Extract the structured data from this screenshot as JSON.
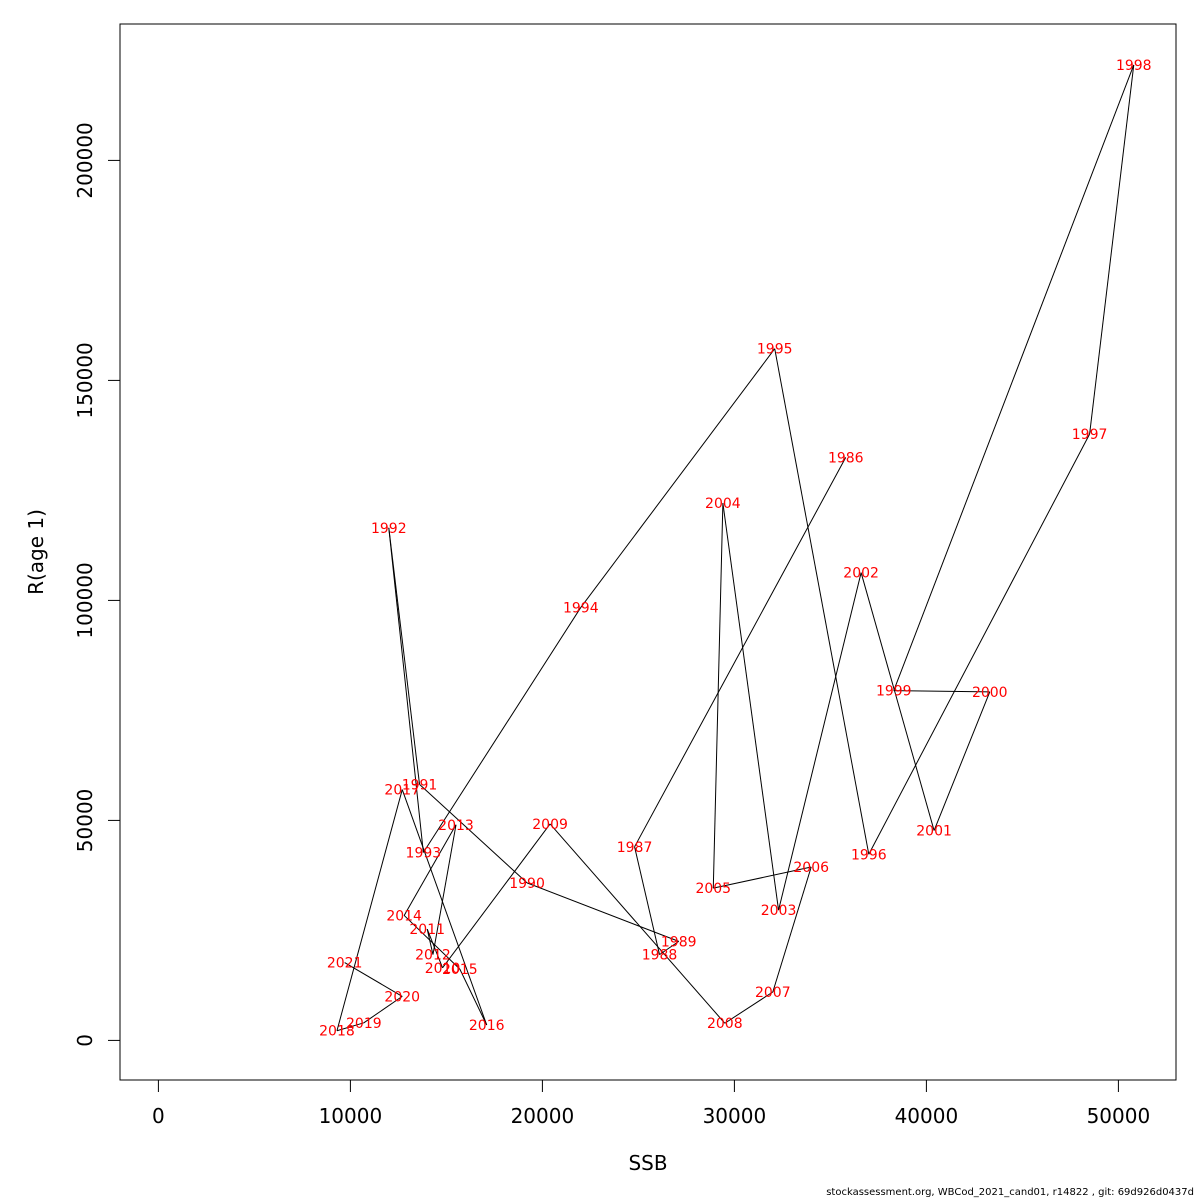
{
  "chart_data": {
    "type": "line",
    "xlabel": "SSB",
    "ylabel": "R(age 1)",
    "xlim": [
      -2000,
      53000
    ],
    "ylim": [
      -9000,
      231000
    ],
    "xticks": [
      0,
      10000,
      20000,
      30000,
      40000,
      50000
    ],
    "yticks": [
      0,
      50000,
      100000,
      150000,
      200000
    ],
    "point_color": "#ff0000",
    "line_color": "#000000",
    "points": [
      {
        "year": "1986",
        "ssb": 35800,
        "r": 132500
      },
      {
        "year": "1987",
        "ssb": 24800,
        "r": 44000
      },
      {
        "year": "1988",
        "ssb": 26100,
        "r": 19500
      },
      {
        "year": "1989",
        "ssb": 27100,
        "r": 22500
      },
      {
        "year": "1990",
        "ssb": 19200,
        "r": 35800
      },
      {
        "year": "1991",
        "ssb": 13600,
        "r": 58200
      },
      {
        "year": "1992",
        "ssb": 12000,
        "r": 116500
      },
      {
        "year": "1993",
        "ssb": 13800,
        "r": 42700
      },
      {
        "year": "1994",
        "ssb": 22000,
        "r": 98400
      },
      {
        "year": "1995",
        "ssb": 32100,
        "r": 157200
      },
      {
        "year": "1996",
        "ssb": 37000,
        "r": 42300
      },
      {
        "year": "1997",
        "ssb": 48500,
        "r": 137800
      },
      {
        "year": "1998",
        "ssb": 50800,
        "r": 221700
      },
      {
        "year": "1999",
        "ssb": 38300,
        "r": 79500
      },
      {
        "year": "2000",
        "ssb": 43300,
        "r": 79200
      },
      {
        "year": "2001",
        "ssb": 40400,
        "r": 47700
      },
      {
        "year": "2002",
        "ssb": 36600,
        "r": 106300
      },
      {
        "year": "2003",
        "ssb": 32300,
        "r": 29600
      },
      {
        "year": "2004",
        "ssb": 29400,
        "r": 122100
      },
      {
        "year": "2005",
        "ssb": 28900,
        "r": 34600
      },
      {
        "year": "2006",
        "ssb": 34000,
        "r": 39400
      },
      {
        "year": "2007",
        "ssb": 32000,
        "r": 11000
      },
      {
        "year": "2008",
        "ssb": 29500,
        "r": 3900
      },
      {
        "year": "2009",
        "ssb": 20400,
        "r": 49200
      },
      {
        "year": "2010",
        "ssb": 14800,
        "r": 16500
      },
      {
        "year": "2011",
        "ssb": 14000,
        "r": 25300
      },
      {
        "year": "2012",
        "ssb": 14300,
        "r": 19500
      },
      {
        "year": "2013",
        "ssb": 15500,
        "r": 49000
      },
      {
        "year": "2014",
        "ssb": 12800,
        "r": 28400
      },
      {
        "year": "2015",
        "ssb": 15700,
        "r": 16200
      },
      {
        "year": "2016",
        "ssb": 17100,
        "r": 3500
      },
      {
        "year": "2017",
        "ssb": 12700,
        "r": 57000
      },
      {
        "year": "2018",
        "ssb": 9300,
        "r": 2200
      },
      {
        "year": "2019",
        "ssb": 10700,
        "r": 4000
      },
      {
        "year": "2020",
        "ssb": 12700,
        "r": 10000
      },
      {
        "year": "2021",
        "ssb": 9700,
        "r": 17700
      }
    ]
  },
  "footer": "stockassessment.org, WBCod_2021_cand01, r14822 , git: 69d926d0437d"
}
